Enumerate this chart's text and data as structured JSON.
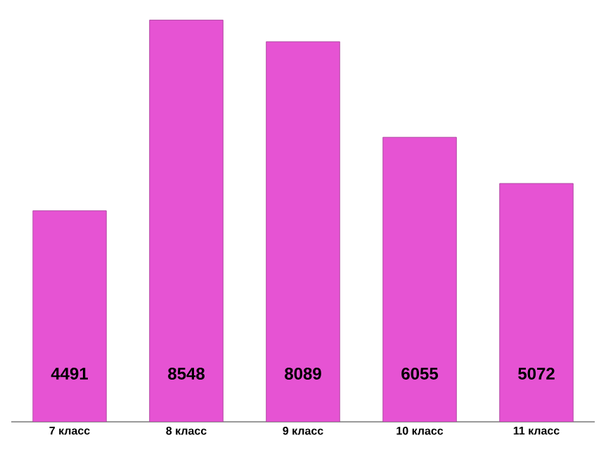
{
  "chart_data": {
    "type": "bar",
    "categories": [
      "7 класс",
      "8 класс",
      "9 класс",
      "10 класс",
      "11 класс"
    ],
    "values": [
      4491,
      8548,
      8089,
      6055,
      5072
    ],
    "color": "#e653d3",
    "data_labels": true
  }
}
